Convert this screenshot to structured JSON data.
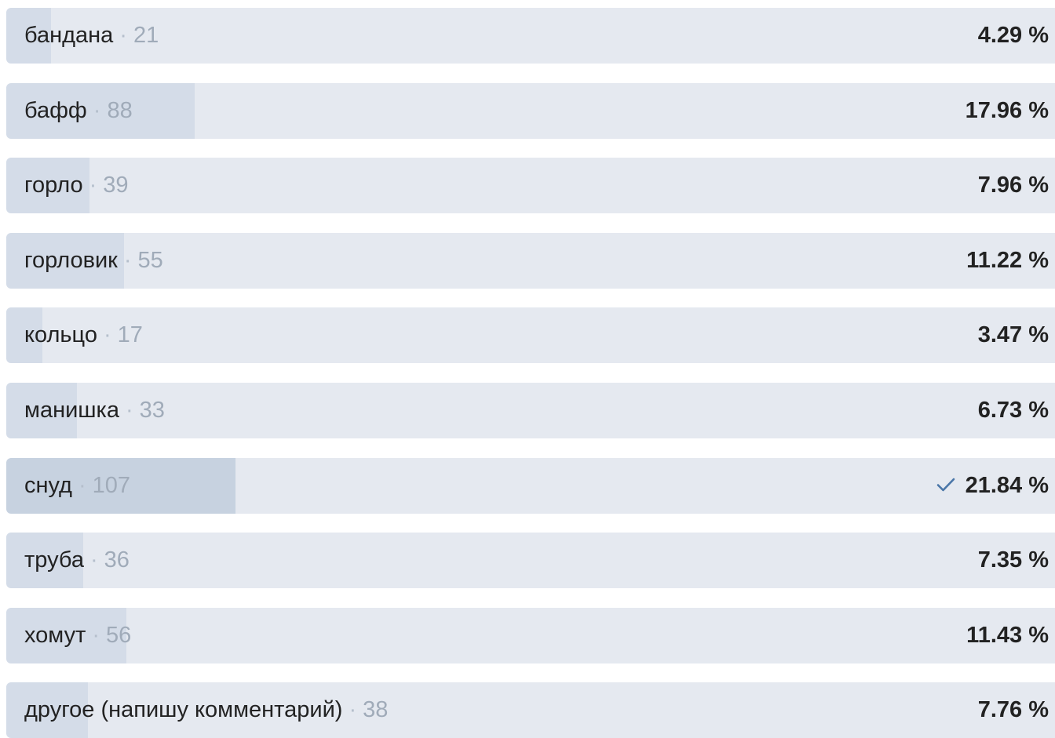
{
  "poll": {
    "options": [
      {
        "label": "бандана",
        "count": "21",
        "percent_text": "4.29 %",
        "share": 0.0429,
        "chosen": false
      },
      {
        "label": "бафф",
        "count": "88",
        "percent_text": "17.96 %",
        "share": 0.1796,
        "chosen": false
      },
      {
        "label": "горло",
        "count": "39",
        "percent_text": "7.96 %",
        "share": 0.0796,
        "chosen": false
      },
      {
        "label": "горловик",
        "count": "55",
        "percent_text": "11.22 %",
        "share": 0.1122,
        "chosen": false
      },
      {
        "label": "кольцо",
        "count": "17",
        "percent_text": "3.47 %",
        "share": 0.0347,
        "chosen": false
      },
      {
        "label": "манишка",
        "count": "33",
        "percent_text": "6.73 %",
        "share": 0.0673,
        "chosen": false
      },
      {
        "label": "снуд",
        "count": "107",
        "percent_text": "21.84 %",
        "share": 0.2184,
        "chosen": true
      },
      {
        "label": "труба",
        "count": "36",
        "percent_text": "7.35 %",
        "share": 0.0735,
        "chosen": false
      },
      {
        "label": "хомут",
        "count": "56",
        "percent_text": "11.43 %",
        "share": 0.1143,
        "chosen": false
      },
      {
        "label": "другое (напишу комментарий)",
        "count": "38",
        "percent_text": "7.76 %",
        "share": 0.0776,
        "chosen": false
      }
    ],
    "separator": "·",
    "chosen_icon": "checkmark-icon",
    "colors": {
      "bar_background": "#e5e9f0",
      "bar_fill": "#d4dce8",
      "bar_fill_chosen": "#c7d2e0",
      "check_accent": "#4a76a8"
    }
  }
}
